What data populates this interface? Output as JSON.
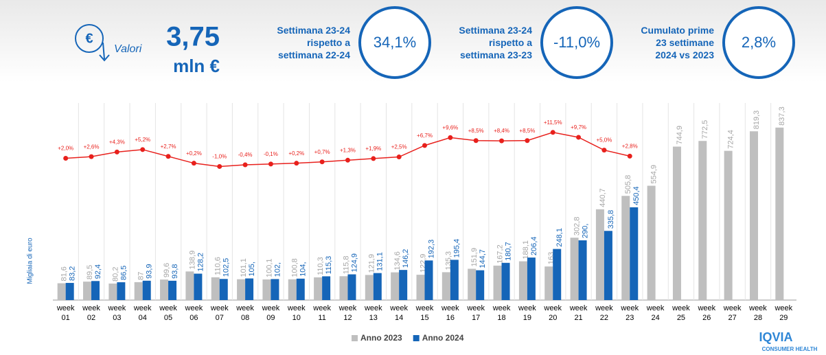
{
  "header": {
    "label": "Valori",
    "value": "3,75",
    "unit": "mln €",
    "kpis": [
      {
        "lines": [
          "Settimana 23-24",
          "rispetto a",
          "settimana 22-24"
        ],
        "value": "34,1%"
      },
      {
        "lines": [
          "Settimana 23-24",
          "rispetto a",
          "settimana 23-23"
        ],
        "value": "-11,0%"
      },
      {
        "lines": [
          "Cumulato prime",
          "23 settimane",
          "2024 vs 2023"
        ],
        "value": "2,8%"
      }
    ]
  },
  "chart_data": {
    "type": "bar",
    "y_label": "Migliaia di euro",
    "categories": [
      "week 01",
      "week 02",
      "week 03",
      "week 04",
      "week 05",
      "week 06",
      "week 07",
      "week 08",
      "week 09",
      "week 10",
      "week 11",
      "week 12",
      "week 13",
      "week 14",
      "week 15",
      "week 16",
      "week 17",
      "week 18",
      "week 19",
      "week 20",
      "week 21",
      "week 22",
      "week 23",
      "week 24",
      "week 25",
      "week 26",
      "week 27",
      "week 28",
      "week 29"
    ],
    "ylim": [
      0,
      900
    ],
    "y2lim": [
      -50,
      18
    ],
    "series": [
      {
        "name": "Anno 2023",
        "color": "#bfbfbf",
        "label_color": "#a6a6a6",
        "values": [
          81.6,
          89.5,
          80.2,
          87,
          99.6,
          138.9,
          110.6,
          101.1,
          100.1,
          100.8,
          110.3,
          115.8,
          121.9,
          134.6,
          122.9,
          135.3,
          151.9,
          167.2,
          188.1,
          163,
          302.8,
          440.7,
          505.8,
          554.9,
          744.9,
          772.5,
          724.4,
          819.3,
          837.3
        ],
        "value_labels": [
          "81,6",
          "89,5",
          "80,2",
          "87",
          "99,6",
          "138,9",
          "110,6",
          "101,1",
          "100,1",
          "100,8",
          "110,3",
          "115,8",
          "121,9",
          "134,6",
          "122,9",
          "135,3",
          "151,9",
          "167,2",
          "188,1",
          "163",
          "302,8",
          "440,7",
          "505,8",
          "554,9",
          "744,9",
          "772,5",
          "724,4",
          "819,3",
          "837,3"
        ]
      },
      {
        "name": "Anno 2024",
        "color": "#1565b8",
        "label_color": "#1565b8",
        "values": [
          83.2,
          92.4,
          86.5,
          93.9,
          93.8,
          128.2,
          102.5,
          105,
          102,
          104,
          115.3,
          124.9,
          131.1,
          146.2,
          192.3,
          195.4,
          144.7,
          180.7,
          206.4,
          248.1,
          290,
          335.8,
          450.4,
          null,
          null,
          null,
          null,
          null,
          null
        ],
        "value_labels": [
          "83,2",
          "92,4",
          "86,5",
          "93,9",
          "93,8",
          "128,2",
          "102,5",
          "105,",
          "102,",
          "104,",
          "115,3",
          "124,9",
          "131,1",
          "146,2",
          "192,3",
          "195,4",
          "144,7",
          "180,7",
          "206,4",
          "248,1",
          "290,",
          "335,8",
          "450,4",
          null,
          null,
          null,
          null,
          null,
          null
        ]
      },
      {
        "type": "line",
        "axis": "y2",
        "color": "#e8201c",
        "values": [
          2.0,
          2.6,
          4.3,
          5.2,
          2.7,
          0.2,
          -1.0,
          -0.4,
          -0.1,
          0.2,
          0.7,
          1.3,
          1.9,
          2.5,
          6.7,
          9.6,
          8.5,
          8.4,
          8.5,
          11.5,
          9.7,
          5.0,
          2.8,
          null,
          null,
          null,
          null,
          null,
          null
        ],
        "value_labels": [
          "+2,0%",
          "+2,6%",
          "+4,3%",
          "+5,2%",
          "+2,7%",
          "+0,2%",
          "-1,0%",
          "-0,4%",
          "-0,1%",
          "+0,2%",
          "+0,7%",
          "+1,3%",
          "+1,9%",
          "+2,5%",
          "+6,7%",
          "+9,6%",
          "+8,5%",
          "+8,4%",
          "+8,5%",
          "+11,5%",
          "+9,7%",
          "+5,0%",
          "+2,8%",
          null,
          null,
          null,
          null,
          null,
          null
        ]
      }
    ]
  },
  "logo": {
    "name": "IQVIA",
    "tagline": "CONSUMER HEALTH"
  }
}
